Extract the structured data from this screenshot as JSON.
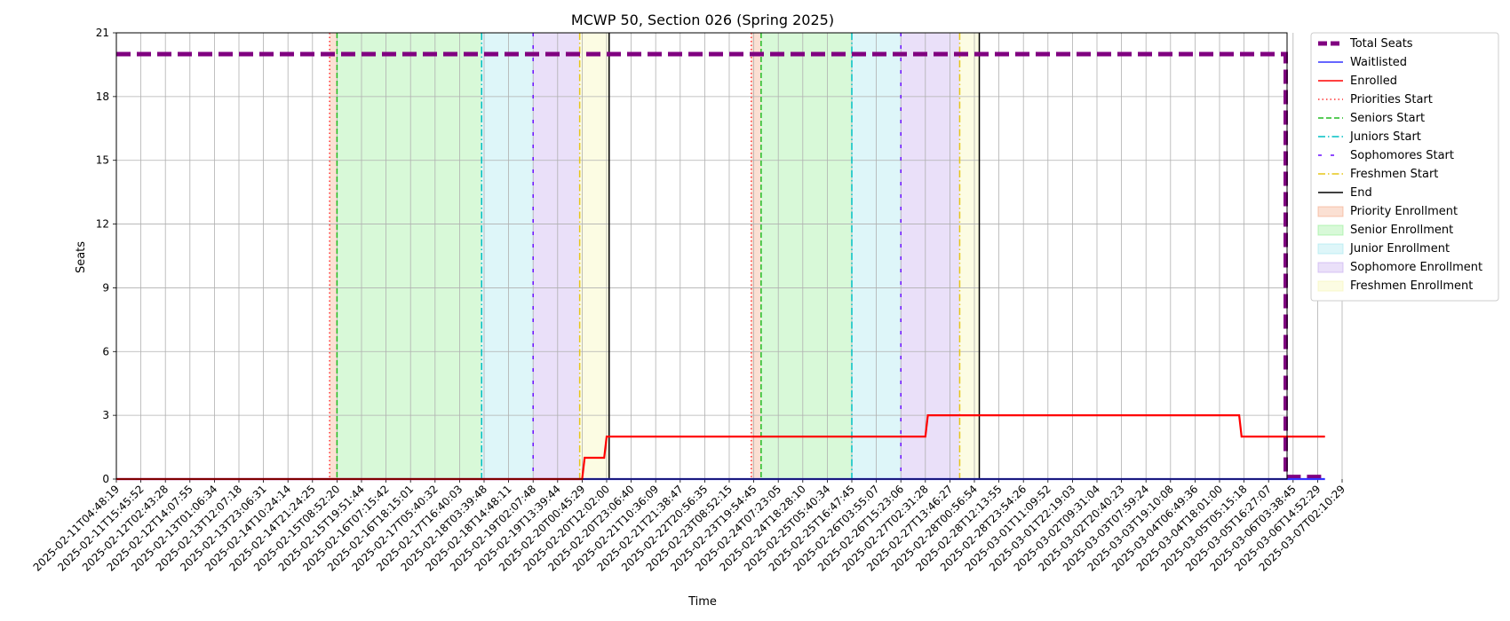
{
  "chart_data": {
    "type": "line",
    "title": "MCWP 50, Section 026 (Spring 2025)",
    "xlabel": "Time",
    "ylabel": "Seats",
    "ylim": [
      0,
      21
    ],
    "yticks": [
      0,
      3,
      6,
      9,
      12,
      15,
      18,
      21
    ],
    "xlim": [
      "2025-02-11T04:48:19",
      "2025-03-07T13:40:00"
    ],
    "grid": true,
    "legend_position": "outside-right",
    "xtick_labels": [
      "2025-02-11T04:48:19",
      "2025-02-11T15:45:52",
      "2025-02-12T02:43:28",
      "2025-02-12T14:07:55",
      "2025-02-13T01:06:34",
      "2025-02-13T12:07:18",
      "2025-02-13T23:06:31",
      "2025-02-14T10:24:14",
      "2025-02-14T21:24:25",
      "2025-02-15T08:52:20",
      "2025-02-15T19:51:44",
      "2025-02-16T07:15:42",
      "2025-02-16T18:15:01",
      "2025-02-17T05:40:32",
      "2025-02-17T16:40:03",
      "2025-02-18T03:39:48",
      "2025-02-18T14:48:11",
      "2025-02-19T02:07:48",
      "2025-02-19T13:39:44",
      "2025-02-20T00:45:29",
      "2025-02-20T12:02:00",
      "2025-02-20T23:06:40",
      "2025-02-21T10:36:09",
      "2025-02-21T21:38:47",
      "2025-02-22T20:56:35",
      "2025-02-23T08:52:15",
      "2025-02-23T19:54:45",
      "2025-02-24T07:23:05",
      "2025-02-24T18:28:10",
      "2025-02-25T05:40:34",
      "2025-02-25T16:47:45",
      "2025-02-26T03:55:07",
      "2025-02-26T15:23:06",
      "2025-02-27T02:31:28",
      "2025-02-27T13:46:27",
      "2025-02-28T00:56:54",
      "2025-02-28T12:13:55",
      "2025-02-28T23:54:26",
      "2025-03-01T11:09:52",
      "2025-03-01T22:19:03",
      "2025-03-02T09:31:04",
      "2025-03-02T20:40:23",
      "2025-03-03T07:59:24",
      "2025-03-03T19:10:08",
      "2025-03-04T06:49:36",
      "2025-03-04T18:01:00",
      "2025-03-05T05:15:18",
      "2025-03-05T16:27:07",
      "2025-03-06T03:38:45",
      "2025-03-06T14:52:29",
      "2025-03-07T02:10:29"
    ],
    "bands": [
      {
        "name": "Priority Enrollment",
        "from": 8.7,
        "to": 9.0,
        "color": "#f4a582"
      },
      {
        "name": "Senior Enrollment",
        "from": 9.0,
        "to": 14.9,
        "color": "#90ee90"
      },
      {
        "name": "Junior Enrollment",
        "from": 14.9,
        "to": 17.0,
        "color": "#a0e6ee"
      },
      {
        "name": "Sophomore Enrollment",
        "from": 17.0,
        "to": 18.9,
        "color": "#c3a6ee"
      },
      {
        "name": "Freshmen Enrollment",
        "from": 18.9,
        "to": 20.1,
        "color": "#f5f5b0"
      },
      {
        "name": "Priority Enrollment",
        "from": 25.9,
        "to": 26.3,
        "color": "#f4a582"
      },
      {
        "name": "Senior Enrollment",
        "from": 26.3,
        "to": 30.0,
        "color": "#90ee90"
      },
      {
        "name": "Junior Enrollment",
        "from": 30.0,
        "to": 32.0,
        "color": "#a0e6ee"
      },
      {
        "name": "Sophomore Enrollment",
        "from": 32.0,
        "to": 34.4,
        "color": "#c3a6ee"
      },
      {
        "name": "Freshmen Enrollment",
        "from": 34.4,
        "to": 35.2,
        "color": "#f5f5b0"
      }
    ],
    "vlines": [
      {
        "name": "Priorities Start",
        "x": 8.7,
        "color": "#ff3333",
        "style": "dotted"
      },
      {
        "name": "Seniors Start",
        "x": 9.0,
        "color": "#22bb22",
        "style": "dashed"
      },
      {
        "name": "Juniors Start",
        "x": 14.9,
        "color": "#00bfc4",
        "style": "dashdot"
      },
      {
        "name": "Sophomores Start",
        "x": 17.0,
        "color": "#6a0dff",
        "style": "loosedash"
      },
      {
        "name": "Freshmen Start",
        "x": 18.9,
        "color": "#e6c619",
        "style": "dashdot"
      },
      {
        "name": "End",
        "x": 20.1,
        "color": "#000000",
        "style": "solid"
      },
      {
        "name": "Priorities Start",
        "x": 25.9,
        "color": "#ff3333",
        "style": "dotted"
      },
      {
        "name": "Seniors Start",
        "x": 26.3,
        "color": "#22bb22",
        "style": "dashed"
      },
      {
        "name": "Juniors Start",
        "x": 30.0,
        "color": "#00bfc4",
        "style": "dashdot"
      },
      {
        "name": "Sophomores Start",
        "x": 32.0,
        "color": "#6a0dff",
        "style": "loosedash"
      },
      {
        "name": "Freshmen Start",
        "x": 34.4,
        "color": "#e6c619",
        "style": "dashdot"
      },
      {
        "name": "End",
        "x": 35.2,
        "color": "#000000",
        "style": "solid"
      }
    ],
    "series": [
      {
        "name": "Total Seats",
        "color": "#800080",
        "style": "thickdash",
        "x": [
          0,
          47.7,
          47.7,
          48.0,
          49.3
        ],
        "values": [
          20,
          20,
          0.1,
          0.1,
          0.1
        ]
      },
      {
        "name": "Waitlisted",
        "color": "#3333ff",
        "style": "solid",
        "x": [
          0,
          49.3
        ],
        "values": [
          0,
          0
        ]
      },
      {
        "name": "Enrolled",
        "color": "#ff0000",
        "style": "solid",
        "x": [
          0,
          19.0,
          19.1,
          19.9,
          20.0,
          33.0,
          33.1,
          45.8,
          45.9,
          49.3
        ],
        "values": [
          0,
          0,
          1,
          1,
          2,
          2,
          3,
          3,
          2,
          2
        ]
      }
    ]
  },
  "legend": [
    {
      "label": "Total Seats",
      "kind": "line",
      "color": "#800080",
      "style": "thickdash"
    },
    {
      "label": "Waitlisted",
      "kind": "line",
      "color": "#3333ff",
      "style": "solid"
    },
    {
      "label": "Enrolled",
      "kind": "line",
      "color": "#ff0000",
      "style": "solid"
    },
    {
      "label": "Priorities Start",
      "kind": "line",
      "color": "#ff3333",
      "style": "dotted"
    },
    {
      "label": "Seniors Start",
      "kind": "line",
      "color": "#22bb22",
      "style": "dashed"
    },
    {
      "label": "Juniors Start",
      "kind": "line",
      "color": "#00bfc4",
      "style": "dashdot"
    },
    {
      "label": "Sophomores Start",
      "kind": "line",
      "color": "#6a0dff",
      "style": "loosedash"
    },
    {
      "label": "Freshmen Start",
      "kind": "line",
      "color": "#e6c619",
      "style": "dashdot"
    },
    {
      "label": "End",
      "kind": "line",
      "color": "#000000",
      "style": "solid"
    },
    {
      "label": "Priority Enrollment",
      "kind": "patch",
      "color": "#f4a582"
    },
    {
      "label": "Senior Enrollment",
      "kind": "patch",
      "color": "#90ee90"
    },
    {
      "label": "Junior Enrollment",
      "kind": "patch",
      "color": "#a0e6ee"
    },
    {
      "label": "Sophomore Enrollment",
      "kind": "patch",
      "color": "#c3a6ee"
    },
    {
      "label": "Freshmen Enrollment",
      "kind": "patch",
      "color": "#f5f5b0"
    }
  ]
}
